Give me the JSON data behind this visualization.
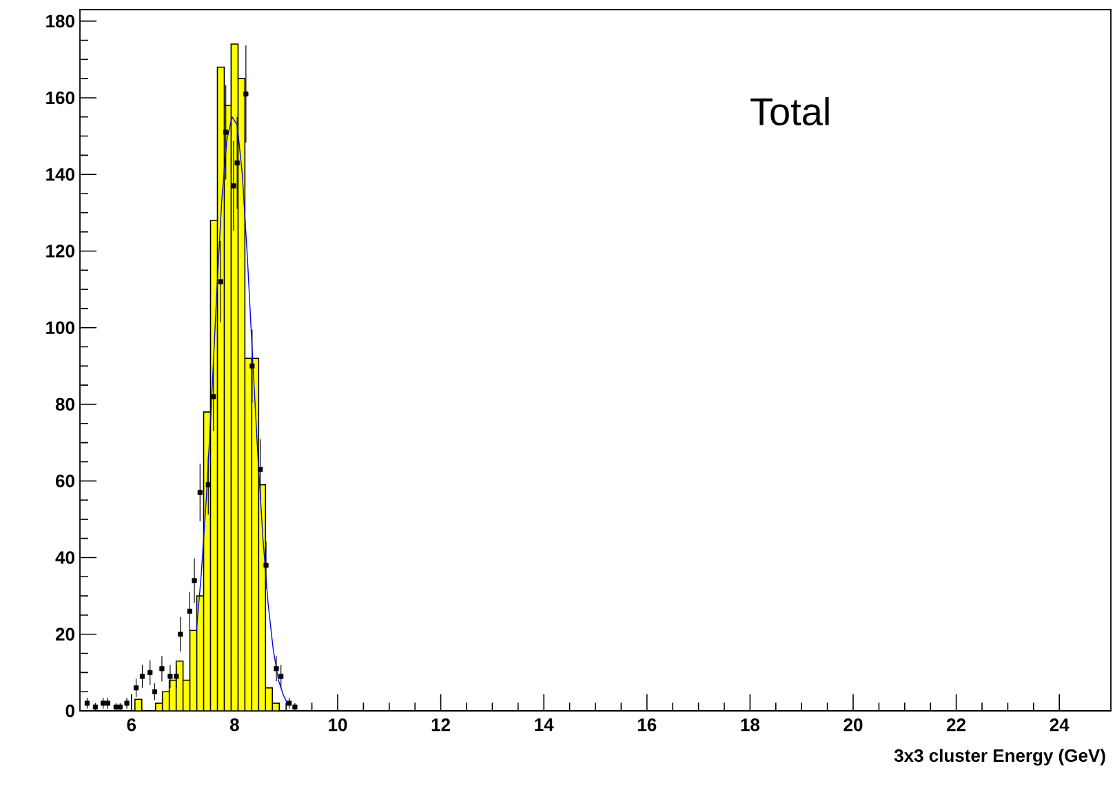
{
  "chart_data": {
    "type": "histogram",
    "xlabel": "3x3 cluster Energy (GeV)",
    "annotations": [
      "Total"
    ],
    "xlim": [
      5,
      25
    ],
    "ylim": [
      0,
      183
    ],
    "xticks": [
      6,
      8,
      10,
      12,
      14,
      16,
      18,
      20,
      22,
      24
    ],
    "yticks": [
      0,
      20,
      40,
      60,
      80,
      100,
      120,
      140,
      160,
      180
    ],
    "series": [
      {
        "color": "#ffff00",
        "bins": [
          6.067,
          6.2,
          6.333,
          6.467,
          6.6,
          6.733,
          6.867,
          7.0,
          7.133,
          7.267,
          7.4,
          7.533,
          7.667,
          7.8,
          7.933,
          8.067,
          8.2,
          8.333,
          8.467,
          8.6,
          8.733,
          8.867
        ],
        "values": [
          3,
          0,
          0,
          2,
          5,
          8,
          13,
          8,
          21,
          30,
          78,
          128,
          168,
          158,
          174,
          165,
          92,
          92,
          59,
          6,
          2
        ]
      },
      {
        "type": "scatter",
        "color": "#000000",
        "marker": "square",
        "x": [
          5.14,
          5.3,
          5.45,
          5.54,
          5.7,
          5.78,
          5.91,
          6.09,
          6.21,
          6.36,
          6.45,
          6.59,
          6.75,
          6.87,
          6.95,
          7.13,
          7.22,
          7.33,
          7.49,
          7.59,
          7.73,
          7.83,
          7.98,
          8.05,
          8.22,
          8.34,
          8.5,
          8.61,
          8.81,
          8.9,
          9.06,
          9.17
        ],
        "values": [
          2,
          1,
          2,
          2,
          1,
          1,
          2,
          6,
          9,
          10,
          5,
          11,
          9,
          9,
          20,
          26,
          34,
          57,
          59,
          82,
          112,
          151,
          137,
          143,
          161,
          90,
          63,
          38,
          11,
          9,
          2,
          1
        ],
        "errors": [
          1.4,
          1,
          1.4,
          1.4,
          1,
          1,
          1.4,
          2.4,
          3,
          3.2,
          2.2,
          3.3,
          3,
          3,
          4.5,
          5.1,
          5.8,
          7.5,
          7.7,
          9,
          10.6,
          12.3,
          11.7,
          12,
          12.7,
          9.5,
          7.9,
          6.2,
          3.3,
          3,
          1.4,
          1
        ]
      },
      {
        "type": "line",
        "color": "#0000ff",
        "x": [
          7.26,
          7.35,
          7.45,
          7.55,
          7.65,
          7.75,
          7.85,
          7.95,
          8.05,
          8.15,
          8.25,
          8.35,
          8.45,
          8.55,
          8.65,
          8.75,
          8.85,
          8.95,
          9.02
        ],
        "values": [
          21,
          35,
          55,
          80,
          108,
          133,
          149,
          155,
          153,
          140,
          118,
          92,
          67,
          45,
          28,
          16,
          8,
          4,
          2
        ]
      }
    ]
  }
}
